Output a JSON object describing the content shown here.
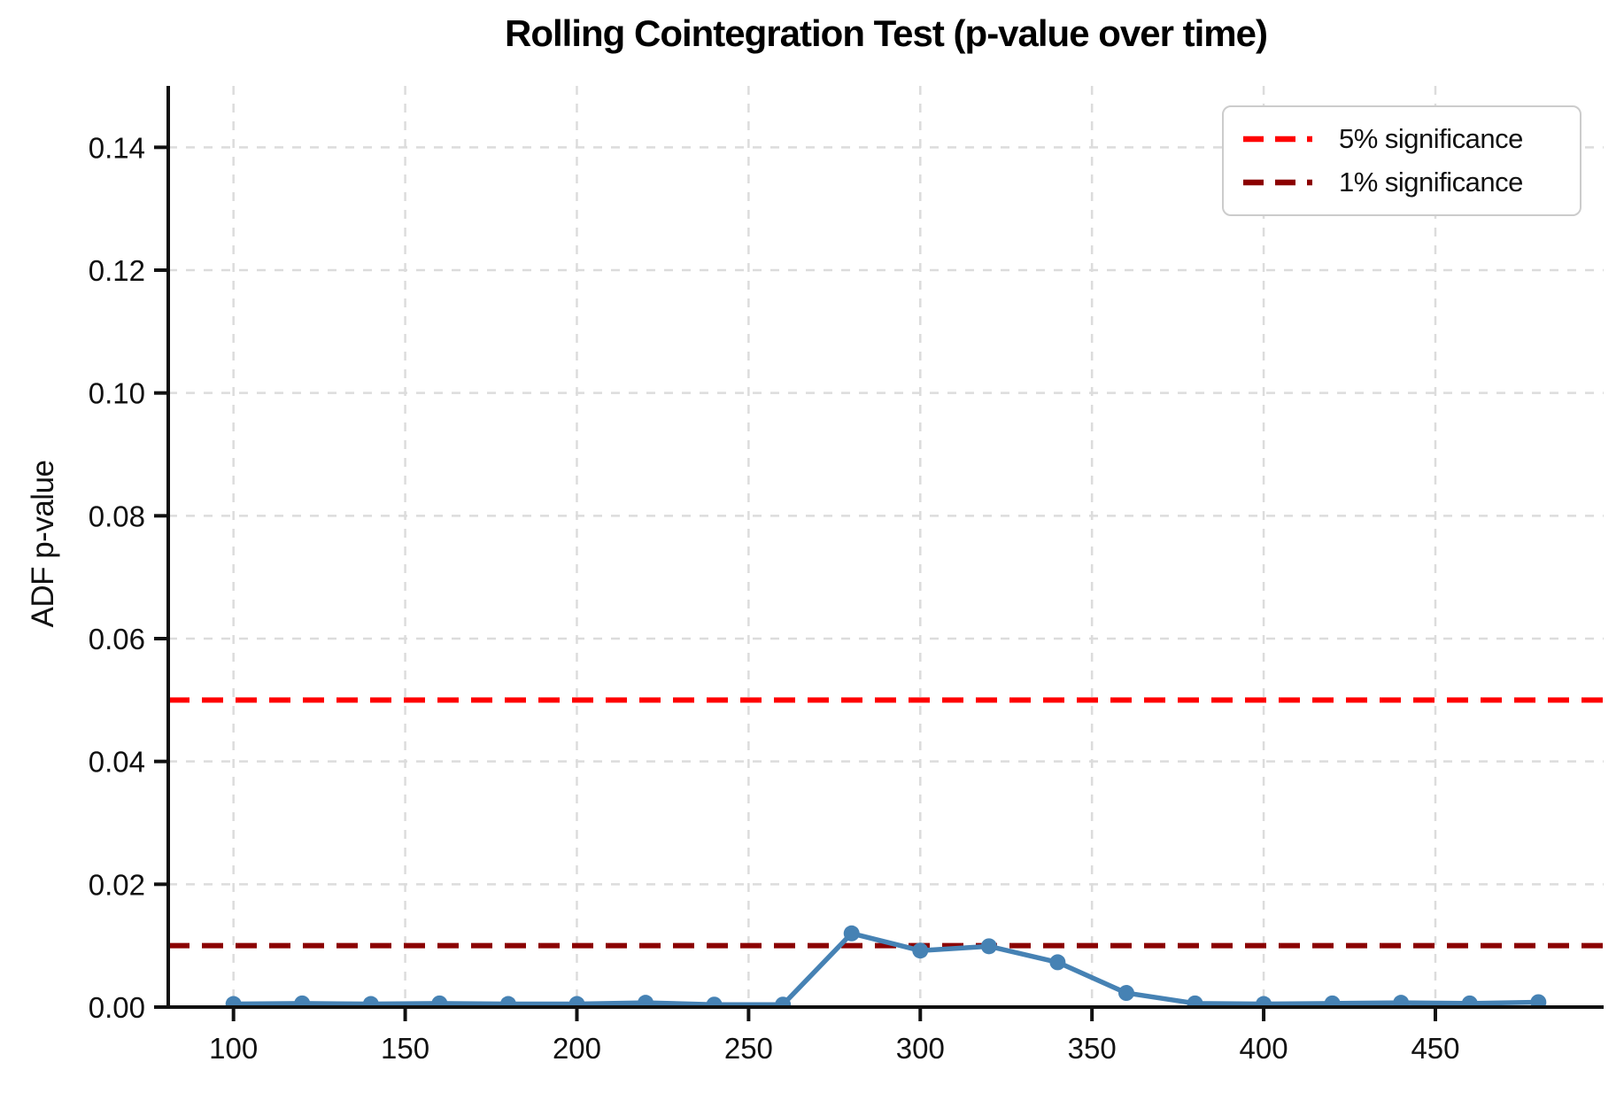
{
  "chart_data": {
    "type": "line",
    "title": "Rolling Cointegration Test (p-value over time)",
    "ylabel": "ADF p-value",
    "x": [
      100,
      120,
      140,
      160,
      180,
      200,
      220,
      240,
      260,
      280,
      300,
      320,
      340,
      360,
      380,
      400,
      420,
      440,
      460,
      480
    ],
    "series": [
      {
        "name": "ADF p-value",
        "color": "#4682B4",
        "marker": "circle",
        "values": [
          0.0005,
          0.0006,
          0.0005,
          0.0006,
          0.0005,
          0.0005,
          0.0007,
          0.0004,
          0.0004,
          0.012,
          0.0092,
          0.0099,
          0.0073,
          0.0023,
          0.0006,
          0.0005,
          0.0006,
          0.0007,
          0.0006,
          0.0008
        ]
      }
    ],
    "reference_lines": [
      {
        "label": "5% significance",
        "value": 0.05,
        "color": "#FF0000",
        "style": "dashed"
      },
      {
        "label": "1% significance",
        "value": 0.01,
        "color": "#8B0000",
        "style": "dashed"
      }
    ],
    "xlim": [
      81,
      499
    ],
    "ylim": [
      0,
      0.15
    ],
    "xticks": [
      100,
      150,
      200,
      250,
      300,
      350,
      400,
      450
    ],
    "ytick_values": [
      0,
      0.02,
      0.04,
      0.06,
      0.08,
      0.1,
      0.12,
      0.14
    ],
    "ytick_labels": [
      "0.00",
      "0.02",
      "0.04",
      "0.06",
      "0.08",
      "0.10",
      "0.12",
      "0.14"
    ],
    "grid": true,
    "grid_color": "#DCDCDC",
    "legend_position": "upper right",
    "axis_color": "#111111"
  }
}
